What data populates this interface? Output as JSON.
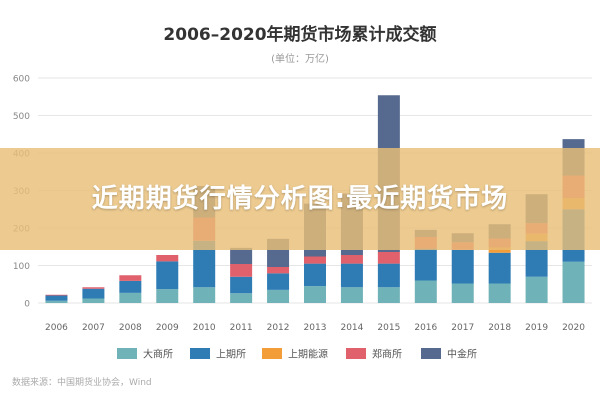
{
  "overlay": {
    "text": "近期期货行情分析图:最近期货市场"
  },
  "source": "数据来源：中国期货业协会，Wind",
  "chart_data": {
    "type": "bar",
    "stacked": true,
    "title": "2006–2020年期货市场累计成交额",
    "subtitle": "(单位：万亿)",
    "xlabel": "",
    "ylabel": "",
    "ylim": [
      0,
      600
    ],
    "yticks": [
      0,
      100,
      200,
      300,
      400,
      500,
      600
    ],
    "grid": true,
    "legend_position": "bottom",
    "categories": [
      "2006",
      "2007",
      "2008",
      "2009",
      "2010",
      "2011",
      "2012",
      "2013",
      "2014",
      "2015",
      "2016",
      "2017",
      "2018",
      "2019",
      "2020"
    ],
    "series": [
      {
        "name": "大商所",
        "color": "#6fb2b7",
        "values": [
          6,
          12,
          27,
          37,
          42,
          26,
          35,
          45,
          42,
          42,
          60,
          52,
          52,
          70,
          110
        ]
      },
      {
        "name": "上期所",
        "color": "#2f7cb5",
        "values": [
          14,
          26,
          32,
          74,
          124,
          44,
          44,
          60,
          63,
          63,
          85,
          90,
          82,
          95,
          140
        ]
      },
      {
        "name": "上期能源",
        "color": "#f29d38",
        "values": [
          0,
          0,
          0,
          0,
          0,
          0,
          0,
          0,
          0,
          0,
          0,
          0,
          14,
          20,
          30
        ]
      },
      {
        "name": "郑商所",
        "color": "#e0606c",
        "values": [
          2,
          4,
          15,
          17,
          62,
          34,
          17,
          19,
          23,
          31,
          31,
          20,
          24,
          28,
          60
        ]
      },
      {
        "name": "中金所",
        "color": "#56698e",
        "values": [
          0,
          0,
          0,
          0,
          84,
          43,
          75,
          141,
          164,
          418,
          19,
          24,
          38,
          77,
          97
        ]
      }
    ]
  }
}
